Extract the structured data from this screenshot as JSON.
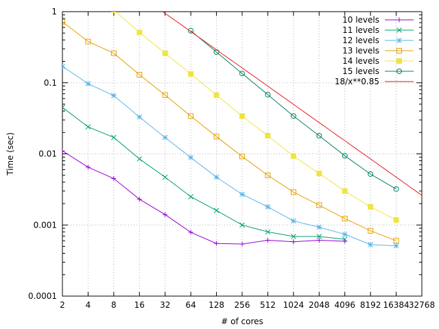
{
  "chart_data": {
    "type": "line",
    "title": "",
    "xlabel": "# of cores",
    "ylabel": "Time (sec)",
    "x_scale": "log2",
    "y_scale": "log10",
    "xlim": [
      2,
      32768
    ],
    "ylim": [
      0.0001,
      1
    ],
    "grid": true,
    "legend_position": "top-right",
    "x_ticks": [
      2,
      4,
      8,
      16,
      32,
      64,
      128,
      256,
      512,
      1024,
      2048,
      4096,
      8192,
      16384,
      32768
    ],
    "x_tick_labels": [
      "2",
      "4",
      "8",
      "16",
      "32",
      "64",
      "128",
      "256",
      "512",
      "1024",
      "2048",
      "4096",
      "8192",
      "16384",
      "32768"
    ],
    "y_ticks": [
      0.0001,
      0.001,
      0.01,
      0.1,
      1
    ],
    "y_tick_labels": [
      "0.0001",
      "0.001",
      "0.01",
      "0.1",
      "1"
    ],
    "series": [
      {
        "name": "10 levels",
        "color": "#9400d3",
        "marker": "plus",
        "x": [
          2,
          4,
          8,
          16,
          32,
          64,
          128,
          256,
          512,
          1024,
          2048,
          4096
        ],
        "values": [
          0.011,
          0.0065,
          0.0045,
          0.0023,
          0.0014,
          0.00079,
          0.00055,
          0.00054,
          0.00061,
          0.00058,
          0.00061,
          0.00059
        ]
      },
      {
        "name": "11 levels",
        "color": "#009e73",
        "marker": "cross",
        "x": [
          2,
          4,
          8,
          16,
          32,
          64,
          128,
          256,
          512,
          1024,
          2048,
          4096
        ],
        "values": [
          0.045,
          0.024,
          0.017,
          0.0085,
          0.0047,
          0.0025,
          0.0016,
          0.001,
          0.0008,
          0.00069,
          0.00069,
          0.00063
        ]
      },
      {
        "name": "12 levels",
        "color": "#56b4e9",
        "marker": "star",
        "x": [
          2,
          4,
          8,
          16,
          32,
          64,
          128,
          256,
          512,
          1024,
          2048,
          4096,
          8192,
          16384
        ],
        "values": [
          0.17,
          0.097,
          0.066,
          0.033,
          0.017,
          0.0089,
          0.0047,
          0.0027,
          0.0018,
          0.00114,
          0.00093,
          0.00074,
          0.00053,
          0.00051
        ]
      },
      {
        "name": "13 levels",
        "color": "#e69f00",
        "marker": "square-open",
        "x": [
          2,
          4,
          8,
          16,
          32,
          64,
          128,
          256,
          512,
          1024,
          2048,
          4096,
          8192,
          16384
        ],
        "values": [
          0.72,
          0.38,
          0.26,
          0.13,
          0.067,
          0.034,
          0.0175,
          0.0092,
          0.005,
          0.0029,
          0.0019,
          0.00123,
          0.00083,
          0.0006
        ]
      },
      {
        "name": "14 levels",
        "color": "#f0e442",
        "marker": "square-filled",
        "x": [
          8,
          16,
          32,
          64,
          128,
          256,
          512,
          1024,
          2048,
          4096,
          8192,
          16384
        ],
        "values": [
          1.05,
          0.51,
          0.26,
          0.133,
          0.067,
          0.034,
          0.018,
          0.0093,
          0.0053,
          0.003,
          0.0018,
          0.00118
        ]
      },
      {
        "name": "15 levels",
        "color": "#007f5f",
        "marker": "circle-open",
        "x": [
          64,
          128,
          256,
          512,
          1024,
          2048,
          4096,
          8192,
          16384
        ],
        "values": [
          0.54,
          0.27,
          0.135,
          0.068,
          0.034,
          0.018,
          0.0094,
          0.0052,
          0.0032
        ]
      },
      {
        "name": "18/x**0.85",
        "color": "#e41a1c",
        "marker": "none",
        "function": {
          "a": 18,
          "b": 0.85
        }
      }
    ]
  }
}
